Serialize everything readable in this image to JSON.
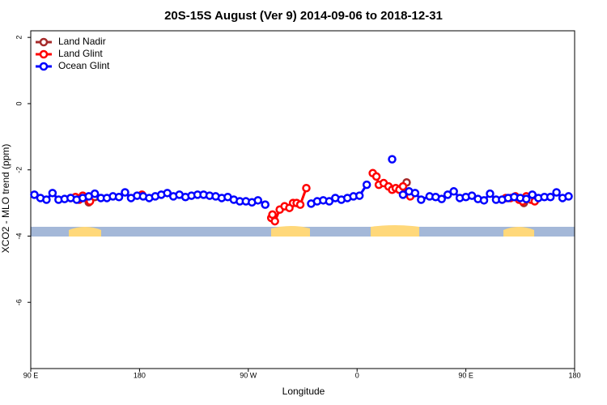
{
  "chart_data": {
    "type": "line",
    "title": "20S-15S August (Ver 9)   2014-09-06 to 2018-12-31",
    "xlabel": "Longitude",
    "ylabel": "XCO2 - MLO trend (ppm)",
    "xlim": [
      90,
      540
    ],
    "ylim": [
      -8,
      2.2
    ],
    "xticks": [
      {
        "value": 90,
        "label": "90 E"
      },
      180,
      {
        "value": 270,
        "label": "90 W"
      },
      {
        "value": 360,
        "label": "0"
      },
      {
        "value": 450,
        "label": "90 E"
      },
      {
        "value": 540,
        "label": "180"
      }
    ],
    "yticks": [
      -6,
      -4,
      -2,
      0,
      2
    ],
    "legend": "top-left",
    "series": [
      {
        "name": "Land Nadir",
        "color": "#a52a2a",
        "x": [
          138,
          143,
          null,
          401,
          null,
          498
        ],
        "values": [
          -2.98,
          -2.82,
          null,
          -2.38,
          null,
          -3.0
        ]
      },
      {
        "name": "Land Glint",
        "color": "#ff0000",
        "x": [
          123,
          127,
          130,
          133,
          136,
          139,
          null,
          182,
          null,
          289,
          290,
          292,
          296,
          300,
          304,
          307,
          310,
          313,
          318,
          null,
          373,
          376,
          378,
          382,
          386,
          389,
          392,
          395,
          398,
          401,
          404,
          null,
          483,
          487,
          491,
          494,
          497,
          500,
          504,
          507
        ],
        "values": [
          -2.85,
          -2.82,
          -2.9,
          -2.78,
          -2.85,
          -2.95,
          null,
          -2.75,
          null,
          -3.45,
          -3.35,
          -3.55,
          -3.2,
          -3.1,
          -3.15,
          -3.0,
          -3.0,
          -3.05,
          -2.55,
          null,
          -2.1,
          -2.2,
          -2.45,
          -2.4,
          -2.5,
          -2.6,
          -2.55,
          -2.6,
          -2.5,
          -2.7,
          -2.8,
          null,
          -2.85,
          -2.85,
          -2.8,
          -2.9,
          -2.95,
          -2.8,
          -2.9,
          -2.95
        ]
      },
      {
        "name": "Ocean Glint",
        "color": "#0000ff",
        "x": [
          93,
          98,
          103,
          108,
          113,
          118,
          123,
          128,
          133,
          138,
          143,
          148,
          153,
          158,
          163,
          168,
          173,
          178,
          183,
          188,
          193,
          198,
          203,
          208,
          213,
          218,
          223,
          228,
          233,
          238,
          243,
          248,
          253,
          258,
          263,
          268,
          273,
          278,
          284,
          null,
          322,
          327,
          332,
          337,
          342,
          347,
          352,
          357,
          362,
          368,
          null,
          389,
          null,
          398,
          403,
          408,
          413,
          420,
          425,
          430,
          435,
          440,
          445,
          450,
          455,
          460,
          465,
          470,
          475,
          480,
          485,
          490,
          495,
          500,
          505,
          510,
          515,
          520,
          525,
          530,
          535
        ],
        "values": [
          -2.75,
          -2.85,
          -2.9,
          -2.7,
          -2.9,
          -2.88,
          -2.85,
          -2.9,
          -2.85,
          -2.8,
          -2.72,
          -2.85,
          -2.85,
          -2.8,
          -2.82,
          -2.68,
          -2.85,
          -2.78,
          -2.8,
          -2.85,
          -2.8,
          -2.75,
          -2.7,
          -2.8,
          -2.75,
          -2.82,
          -2.78,
          -2.75,
          -2.75,
          -2.78,
          -2.8,
          -2.85,
          -2.82,
          -2.9,
          -2.95,
          -2.95,
          -2.98,
          -2.92,
          -3.05,
          null,
          -3.02,
          -2.95,
          -2.92,
          -2.95,
          -2.85,
          -2.9,
          -2.85,
          -2.8,
          -2.78,
          -2.45,
          null,
          -1.68,
          null,
          -2.75,
          -2.65,
          -2.7,
          -2.9,
          -2.8,
          -2.82,
          -2.88,
          -2.75,
          -2.65,
          -2.85,
          -2.82,
          -2.78,
          -2.88,
          -2.92,
          -2.72,
          -2.9,
          -2.9,
          -2.85,
          -2.82,
          -2.85,
          -2.88,
          -2.75,
          -2.85,
          -2.82,
          -2.82,
          -2.68,
          -2.85,
          -2.8
        ]
      }
    ]
  }
}
